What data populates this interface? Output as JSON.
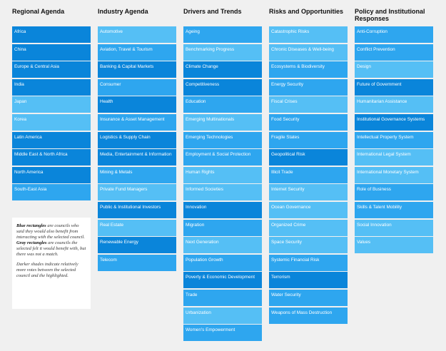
{
  "columns": [
    {
      "title": "Regional Agenda",
      "items": [
        {
          "label": "Africa",
          "shade": 2
        },
        {
          "label": "China",
          "shade": 2
        },
        {
          "label": "Europe & Central Asia",
          "shade": 2
        },
        {
          "label": "India",
          "shade": 2
        },
        {
          "label": "Japan",
          "shade": 0
        },
        {
          "label": "Korea",
          "shade": 0
        },
        {
          "label": "Latin America",
          "shade": 2
        },
        {
          "label": "Middle East & North Africa",
          "shade": 2
        },
        {
          "label": "North America",
          "shade": 2
        },
        {
          "label": "South-East Asia",
          "shade": 1
        }
      ]
    },
    {
      "title": "Industry Agenda",
      "items": [
        {
          "label": "Automotive",
          "shade": 0
        },
        {
          "label": "Aviation, Travel & Tourism",
          "shade": 1
        },
        {
          "label": "Banking & Capital Markets",
          "shade": 2
        },
        {
          "label": "Consumer",
          "shade": 1
        },
        {
          "label": "Health",
          "shade": 2
        },
        {
          "label": "Insurance & Asset Management",
          "shade": 1
        },
        {
          "label": "Logistics & Supply Chain",
          "shade": 2
        },
        {
          "label": "Media, Entertainment & Information",
          "shade": 2
        },
        {
          "label": "Mining & Metals",
          "shade": 1
        },
        {
          "label": "Private Fund Managers",
          "shade": 0
        },
        {
          "label": "Public & Institutional Investors",
          "shade": 2
        },
        {
          "label": "Real Estate",
          "shade": 0
        },
        {
          "label": "Renewable Energy",
          "shade": 2
        },
        {
          "label": "Telecom",
          "shade": 1
        }
      ]
    },
    {
      "title": "Drivers and Trends",
      "items": [
        {
          "label": "Ageing",
          "shade": 1
        },
        {
          "label": "Benchmarking Progress",
          "shade": 0
        },
        {
          "label": "Climate Change",
          "shade": 2
        },
        {
          "label": "Competitiveness",
          "shade": 2
        },
        {
          "label": "Education",
          "shade": 1
        },
        {
          "label": "Emerging Multinationals",
          "shade": 0
        },
        {
          "label": "Emerging Technologies",
          "shade": 1
        },
        {
          "label": "Employment & Social Protection",
          "shade": 1
        },
        {
          "label": "Human Rights",
          "shade": 0
        },
        {
          "label": "Informed Societies",
          "shade": 0
        },
        {
          "label": "Innovation",
          "shade": 2
        },
        {
          "label": "Migration",
          "shade": 1
        },
        {
          "label": "Next Generation",
          "shade": 0
        },
        {
          "label": "Population Growth",
          "shade": 1
        },
        {
          "label": "Poverty & Economic Development",
          "shade": 2
        },
        {
          "label": "Trade",
          "shade": 1
        },
        {
          "label": "Urbanization",
          "shade": 0
        },
        {
          "label": "Women's Empowerment",
          "shade": 1
        }
      ]
    },
    {
      "title": "Risks and Opportunities",
      "items": [
        {
          "label": "Catastrophic Risks",
          "shade": 0
        },
        {
          "label": "Chronic Diseases & Well-being",
          "shade": 0
        },
        {
          "label": "Ecosystems & Biodiversity",
          "shade": 1
        },
        {
          "label": "Energy Security",
          "shade": 1
        },
        {
          "label": "Fiscal Crises",
          "shade": 0
        },
        {
          "label": "Food Security",
          "shade": 1
        },
        {
          "label": "Fragile States",
          "shade": 1
        },
        {
          "label": "Geopolitical Risk",
          "shade": 2
        },
        {
          "label": "Illicit Trade",
          "shade": 1
        },
        {
          "label": "Internet Security",
          "shade": 0
        },
        {
          "label": "Ocean Governance",
          "shade": 0
        },
        {
          "label": "Organized Crime",
          "shade": 0
        },
        {
          "label": "Space Security",
          "shade": 0
        },
        {
          "label": "Systemic Financial Risk",
          "shade": 1
        },
        {
          "label": "Terrorism",
          "shade": 2
        },
        {
          "label": "Water Security",
          "shade": 1
        },
        {
          "label": "Weapons of Mass Destruction",
          "shade": 1
        }
      ]
    },
    {
      "title": "Policy and Institutional Responses",
      "items": [
        {
          "label": "Anti-Corruption",
          "shade": 1
        },
        {
          "label": "Conflict Prevention",
          "shade": 1
        },
        {
          "label": "Design",
          "shade": 0
        },
        {
          "label": "Future of Government",
          "shade": 2
        },
        {
          "label": "Humanitarian Assistance",
          "shade": 0
        },
        {
          "label": "Institutional Governance Systems",
          "shade": 2
        },
        {
          "label": "Intellectual Property System",
          "shade": 1
        },
        {
          "label": "International Legal System",
          "shade": 0
        },
        {
          "label": "International Monetary System",
          "shade": 0
        },
        {
          "label": "Role of Business",
          "shade": 1
        },
        {
          "label": "Skills & Talent Mobility",
          "shade": 1
        },
        {
          "label": "Social Innovation",
          "shade": 0
        },
        {
          "label": "Values",
          "shade": 0
        }
      ]
    }
  ],
  "shade_colors": [
    "#55bff5",
    "#2ea6ef",
    "#0a85da"
  ],
  "legend": {
    "blue_term": "Blue rectangles",
    "blue_text": " are councils who said they would also benefit from interacting with the selected council. ",
    "gray_term": "Gray rectangles",
    "gray_text": " are councils the selected felt it would benefit with, but there was not a match.",
    "shade_note": "Darker shades indicate relatively more votes between the selected council and the highlighted."
  }
}
